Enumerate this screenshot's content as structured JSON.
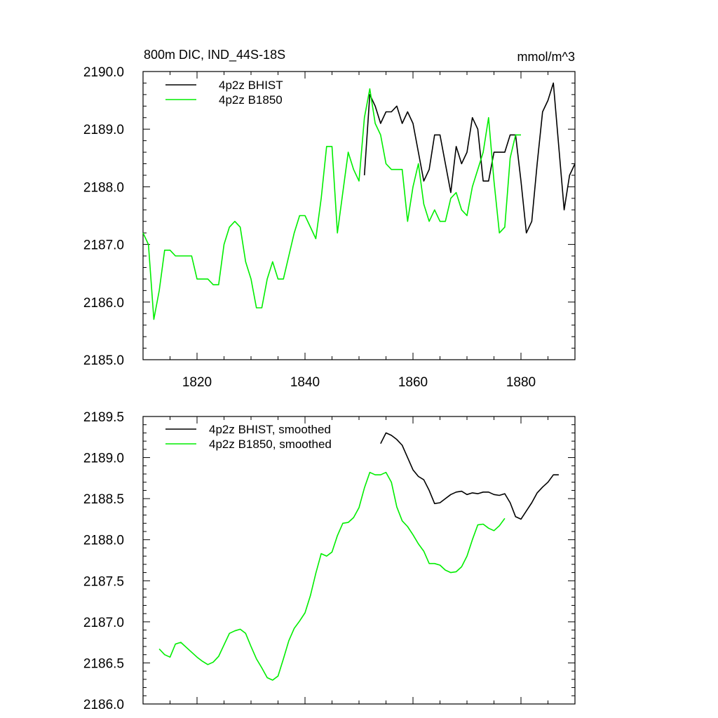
{
  "chart_data": [
    {
      "type": "line",
      "title": "800m DIC, IND_44S-18S",
      "units": "mmol/m^3",
      "xlabel": "",
      "ylabel": "",
      "xlim": [
        1810,
        1890
      ],
      "ylim": [
        2185.0,
        2190.0
      ],
      "xticks": [
        1820,
        1840,
        1860,
        1880
      ],
      "yticks": [
        2185.0,
        2186.0,
        2187.0,
        2188.0,
        2189.0,
        2190.0
      ],
      "ytick_labels": [
        "2185.0",
        "2186.0",
        "2187.0",
        "2188.0",
        "2189.0",
        "2190.0"
      ],
      "xtick_labels": [
        "1820",
        "1840",
        "1860",
        "1880"
      ],
      "grid": false,
      "legend": "top-left",
      "series": [
        {
          "name": "4p2z BHIST",
          "color": "#000000",
          "x": [
            1851,
            1852,
            1853,
            1854,
            1855,
            1856,
            1857,
            1858,
            1859,
            1860,
            1861,
            1862,
            1863,
            1864,
            1865,
            1866,
            1867,
            1868,
            1869,
            1870,
            1871,
            1872,
            1873,
            1874,
            1875,
            1876,
            1877,
            1878,
            1879,
            1880,
            1881,
            1882,
            1883,
            1884,
            1885,
            1886,
            1887,
            1888,
            1889,
            1890
          ],
          "y": [
            2188.2,
            2189.6,
            2189.4,
            2189.1,
            2189.3,
            2189.3,
            2189.4,
            2189.1,
            2189.3,
            2189.1,
            2188.6,
            2188.1,
            2188.3,
            2188.9,
            2188.9,
            2188.4,
            2187.9,
            2188.7,
            2188.4,
            2188.6,
            2189.2,
            2189.0,
            2188.1,
            2188.1,
            2188.6,
            2188.6,
            2188.6,
            2188.9,
            2188.9,
            2188.1,
            2187.2,
            2187.4,
            2188.4,
            2189.3,
            2189.5,
            2189.8,
            2188.7,
            2187.6,
            2188.2,
            2188.4
          ]
        },
        {
          "name": "4p2z B1850",
          "color": "#00ee00",
          "x": [
            1810,
            1811,
            1812,
            1813,
            1814,
            1815,
            1816,
            1817,
            1818,
            1819,
            1820,
            1821,
            1822,
            1823,
            1824,
            1825,
            1826,
            1827,
            1828,
            1829,
            1830,
            1831,
            1832,
            1833,
            1834,
            1835,
            1836,
            1837,
            1838,
            1839,
            1840,
            1841,
            1842,
            1843,
            1844,
            1845,
            1846,
            1847,
            1848,
            1849,
            1850,
            1851,
            1852,
            1853,
            1854,
            1855,
            1856,
            1857,
            1858,
            1859,
            1860,
            1861,
            1862,
            1863,
            1864,
            1865,
            1866,
            1867,
            1868,
            1869,
            1870,
            1871,
            1872,
            1873,
            1874,
            1875,
            1876,
            1877,
            1878,
            1879,
            1880
          ],
          "y": [
            2187.2,
            2187.0,
            2185.7,
            2186.2,
            2186.9,
            2186.9,
            2186.8,
            2186.8,
            2186.8,
            2186.8,
            2186.4,
            2186.4,
            2186.4,
            2186.3,
            2186.3,
            2187.0,
            2187.3,
            2187.4,
            2187.3,
            2186.7,
            2186.4,
            2185.9,
            2185.9,
            2186.4,
            2186.7,
            2186.4,
            2186.4,
            2186.8,
            2187.2,
            2187.5,
            2187.5,
            2187.3,
            2187.1,
            2187.8,
            2188.7,
            2188.7,
            2187.2,
            2187.9,
            2188.6,
            2188.3,
            2188.1,
            2189.2,
            2189.7,
            2189.1,
            2188.9,
            2188.4,
            2188.3,
            2188.3,
            2188.3,
            2187.4,
            2188.0,
            2188.4,
            2187.7,
            2187.4,
            2187.6,
            2187.4,
            2187.4,
            2187.8,
            2187.9,
            2187.6,
            2187.5,
            2188.0,
            2188.3,
            2188.6,
            2189.2,
            2188.1,
            2187.2,
            2187.3,
            2188.5,
            2188.9,
            2188.9
          ]
        }
      ]
    },
    {
      "type": "line",
      "title": "",
      "xlabel": "",
      "ylabel": "",
      "xlim": [
        1810,
        1890
      ],
      "ylim": [
        2186.0,
        2189.5
      ],
      "xticks": [
        1820,
        1840,
        1860,
        1880
      ],
      "yticks": [
        2186.0,
        2186.5,
        2187.0,
        2187.5,
        2188.0,
        2188.5,
        2189.0,
        2189.5
      ],
      "ytick_labels": [
        "2186.0",
        "2186.5",
        "2187.0",
        "2187.5",
        "2188.0",
        "2188.5",
        "2189.0",
        "2189.5"
      ],
      "grid": false,
      "legend": "top-left",
      "series": [
        {
          "name": "4p2z BHIST, smoothed",
          "color": "#000000",
          "x": [
            1854,
            1855,
            1856,
            1857,
            1858,
            1859,
            1860,
            1861,
            1862,
            1863,
            1864,
            1865,
            1866,
            1867,
            1868,
            1869,
            1870,
            1871,
            1872,
            1873,
            1874,
            1875,
            1876,
            1877,
            1878,
            1879,
            1880,
            1881,
            1882,
            1883,
            1884,
            1885,
            1886,
            1887
          ],
          "y": [
            2189.17,
            2189.3,
            2189.27,
            2189.22,
            2189.15,
            2189.0,
            2188.85,
            2188.77,
            2188.73,
            2188.6,
            2188.44,
            2188.45,
            2188.5,
            2188.55,
            2188.58,
            2188.59,
            2188.55,
            2188.57,
            2188.56,
            2188.58,
            2188.58,
            2188.55,
            2188.54,
            2188.56,
            2188.45,
            2188.28,
            2188.25,
            2188.35,
            2188.45,
            2188.57,
            2188.64,
            2188.7,
            2188.79,
            2188.79
          ]
        },
        {
          "name": "4p2z B1850, smoothed",
          "color": "#00ee00",
          "x": [
            1813,
            1814,
            1815,
            1816,
            1817,
            1818,
            1819,
            1820,
            1821,
            1822,
            1823,
            1824,
            1825,
            1826,
            1827,
            1828,
            1829,
            1830,
            1831,
            1832,
            1833,
            1834,
            1835,
            1836,
            1837,
            1838,
            1839,
            1840,
            1841,
            1842,
            1843,
            1844,
            1845,
            1846,
            1847,
            1848,
            1849,
            1850,
            1851,
            1852,
            1853,
            1854,
            1855,
            1856,
            1857,
            1858,
            1859,
            1860,
            1861,
            1862,
            1863,
            1864,
            1865,
            1866,
            1867,
            1868,
            1869,
            1870,
            1871,
            1872,
            1873,
            1874,
            1875,
            1876,
            1877
          ],
          "y": [
            2186.67,
            2186.6,
            2186.57,
            2186.73,
            2186.75,
            2186.69,
            2186.63,
            2186.57,
            2186.52,
            2186.48,
            2186.51,
            2186.58,
            2186.72,
            2186.86,
            2186.89,
            2186.91,
            2186.86,
            2186.7,
            2186.55,
            2186.44,
            2186.32,
            2186.29,
            2186.34,
            2186.55,
            2186.77,
            2186.92,
            2187.01,
            2187.11,
            2187.32,
            2187.59,
            2187.83,
            2187.8,
            2187.85,
            2188.05,
            2188.2,
            2188.21,
            2188.27,
            2188.39,
            2188.63,
            2188.82,
            2188.79,
            2188.79,
            2188.82,
            2188.7,
            2188.4,
            2188.23,
            2188.16,
            2188.06,
            2187.95,
            2187.86,
            2187.71,
            2187.71,
            2187.69,
            2187.63,
            2187.6,
            2187.61,
            2187.67,
            2187.8,
            2188.0,
            2188.18,
            2188.19,
            2188.14,
            2188.11,
            2188.17,
            2188.26
          ]
        }
      ]
    }
  ]
}
